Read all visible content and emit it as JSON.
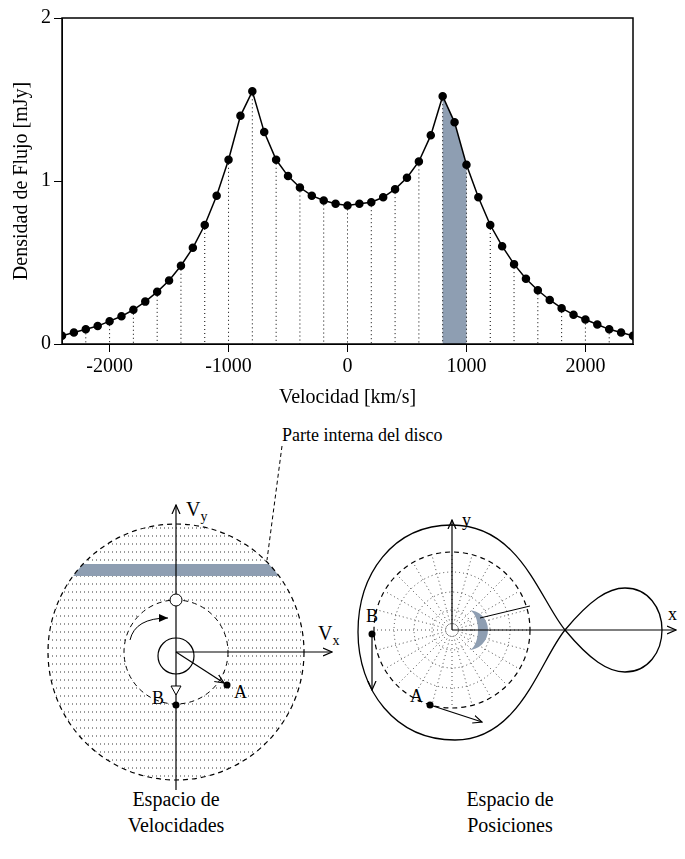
{
  "chart_data": {
    "type": "line",
    "x_label": "Velocidad [km/s]",
    "y_label": "Densidad de Flujo [mJy]",
    "x": [
      -2400,
      -2300,
      -2200,
      -2100,
      -2000,
      -1900,
      -1800,
      -1700,
      -1600,
      -1500,
      -1400,
      -1300,
      -1200,
      -1100,
      -1000,
      -900,
      -800,
      -700,
      -600,
      -500,
      -400,
      -300,
      -200,
      -100,
      0,
      100,
      200,
      300,
      400,
      500,
      600,
      700,
      800,
      900,
      1000,
      1100,
      1200,
      1300,
      1400,
      1500,
      1600,
      1700,
      1800,
      1900,
      2000,
      2100,
      2200,
      2300,
      2400
    ],
    "values": [
      0.05,
      0.07,
      0.09,
      0.11,
      0.14,
      0.17,
      0.21,
      0.26,
      0.32,
      0.39,
      0.48,
      0.59,
      0.73,
      0.91,
      1.13,
      1.4,
      1.55,
      1.3,
      1.13,
      1.03,
      0.96,
      0.91,
      0.88,
      0.86,
      0.85,
      0.86,
      0.87,
      0.9,
      0.95,
      1.02,
      1.12,
      1.28,
      1.52,
      1.36,
      1.1,
      0.9,
      0.73,
      0.6,
      0.49,
      0.4,
      0.33,
      0.27,
      0.22,
      0.18,
      0.15,
      0.12,
      0.09,
      0.07,
      0.05
    ],
    "color": "#000000",
    "marker": "circle",
    "xlim": [
      -2400,
      2400
    ],
    "xticks": [
      -2000,
      -1000,
      0,
      1000,
      2000
    ],
    "ylim": [
      0,
      2
    ],
    "yticks": [
      0,
      1,
      2
    ],
    "grid": false,
    "band": {
      "range": [
        800,
        1000
      ],
      "color": "#8e9eb2"
    }
  },
  "diagrams": {
    "annotation": "Parte interna del disco",
    "velocity_space": {
      "caption": "Espacio de Velocidades",
      "axes": [
        "Vx",
        "Vy"
      ],
      "points": [
        "A",
        "B"
      ]
    },
    "position_space": {
      "caption": "Espacio de Posiciones",
      "axes": [
        "x",
        "y"
      ],
      "points": [
        "A",
        "B"
      ]
    }
  }
}
